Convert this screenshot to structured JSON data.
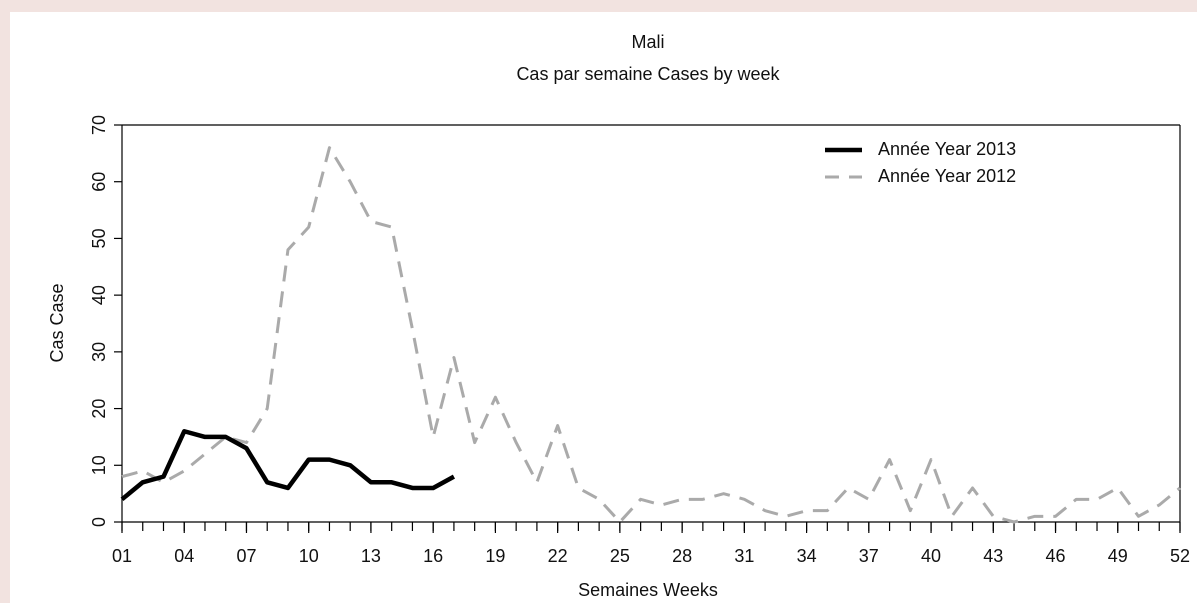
{
  "chart_data": {
    "type": "line",
    "title": "Mali",
    "subtitle": "Cas par semaine Cases by week",
    "x_label": "Semaines Weeks",
    "y_label": "Cas Case",
    "x": [
      1,
      2,
      3,
      4,
      5,
      6,
      7,
      8,
      9,
      10,
      11,
      12,
      13,
      14,
      15,
      16,
      17,
      18,
      19,
      20,
      21,
      22,
      23,
      24,
      25,
      26,
      27,
      28,
      29,
      30,
      31,
      32,
      33,
      34,
      35,
      36,
      37,
      38,
      39,
      40,
      41,
      42,
      43,
      44,
      45,
      46,
      47,
      48,
      49,
      50,
      51,
      52
    ],
    "series": [
      {
        "name": "Année Year 2013",
        "color": "#000000",
        "dash": "solid",
        "values": [
          4,
          7,
          8,
          16,
          15,
          15,
          13,
          7,
          6,
          11,
          11,
          10,
          7,
          7,
          6,
          6,
          8,
          null,
          null,
          null,
          null,
          null,
          null,
          null,
          null,
          null,
          null,
          null,
          null,
          null,
          null,
          null,
          null,
          null,
          null,
          null,
          null,
          null,
          null,
          null,
          null,
          null,
          null,
          null,
          null,
          null,
          null,
          null,
          null,
          null,
          null,
          null
        ]
      },
      {
        "name": "Année Year 2012",
        "color": "#aaaaaa",
        "dash": "dashed",
        "values": [
          8,
          9,
          7,
          9,
          12,
          15,
          14,
          20,
          48,
          52,
          66,
          60,
          53,
          52,
          34,
          15,
          29,
          14,
          22,
          14,
          7,
          17,
          6,
          4,
          0,
          4,
          3,
          4,
          4,
          5,
          4,
          2,
          1,
          2,
          2,
          6,
          4,
          11,
          2,
          11,
          1,
          6,
          1,
          0,
          1,
          1,
          4,
          4,
          6,
          1,
          3,
          6
        ]
      }
    ],
    "xlim": [
      1,
      52
    ],
    "xticks": [
      {
        "value": 1,
        "label": "01"
      },
      {
        "value": 4,
        "label": "04"
      },
      {
        "value": 7,
        "label": "07"
      },
      10,
      13,
      16,
      19,
      22,
      25,
      28,
      31,
      34,
      37,
      40,
      43,
      46,
      49,
      52
    ],
    "ylim": [
      0,
      70
    ],
    "yticks": [
      0,
      10,
      20,
      30,
      40,
      50,
      60,
      70
    ],
    "legend": "upper right"
  }
}
